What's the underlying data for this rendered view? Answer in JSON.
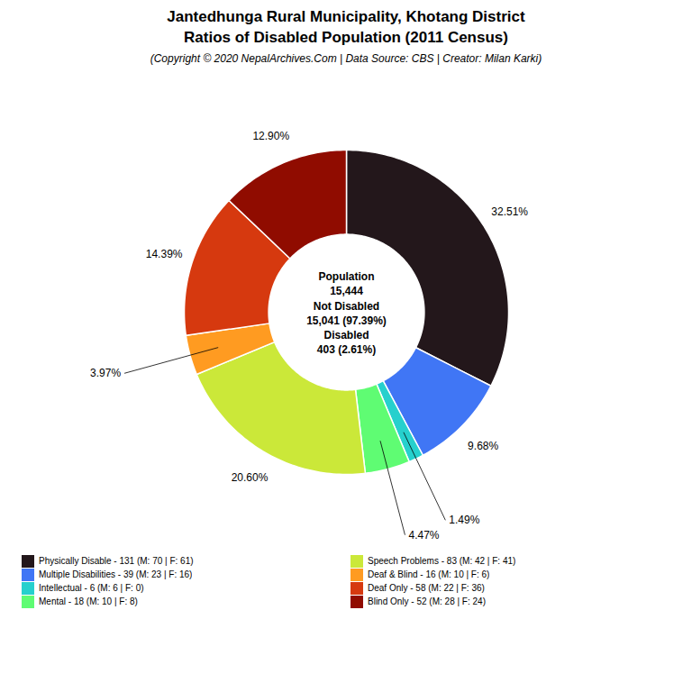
{
  "chart_data": {
    "type": "donut",
    "title": "Jantedhunga Rural Municipality, Khotang District\nRatios of Disabled Population (2011 Census)",
    "subtitle": "(Copyright © 2020 NepalArchives.Com | Data Source: CBS | Creator: Milan Karki)",
    "categories": [
      "Physically Disable - 131 (M: 70 | F: 61)",
      "Multiple Disabilities - 39 (M: 23 | F: 16)",
      "Intellectual - 6 (M: 6 | F: 0)",
      "Mental - 18 (M: 10 | F: 8)",
      "Speech Problems - 83 (M: 42 | F: 41)",
      "Deaf & Blind - 16 (M: 10 | F: 6)",
      "Deaf Only - 58 (M: 22 | F: 36)",
      "Blind Only - 52 (M: 28 | F: 24)"
    ],
    "values": [
      32.51,
      9.68,
      1.49,
      4.47,
      20.6,
      3.97,
      14.39,
      12.9
    ],
    "value_labels": [
      "32.51%",
      "9.68%",
      "1.49%",
      "4.47%",
      "20.60%",
      "3.97%",
      "14.39%",
      "12.90%"
    ],
    "data_labels": true,
    "annotations": [
      "Population",
      "15,444",
      "Not Disabled",
      "15,041 (97.39%)",
      "Disabled",
      "403 (2.61%)"
    ],
    "legend": "bottom"
  }
}
